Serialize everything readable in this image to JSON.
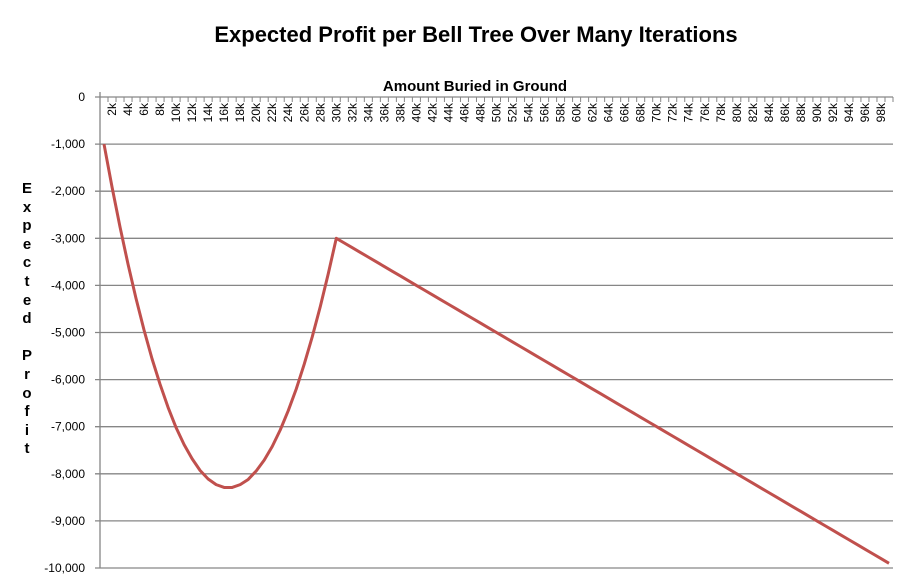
{
  "chart_data": {
    "type": "line",
    "title": "Expected Profit per Bell Tree Over Many Iterations",
    "xlabel": "Amount Buried in Ground",
    "ylabel": "Expected Profit",
    "x": [
      1000,
      2000,
      3000,
      4000,
      5000,
      6000,
      7000,
      8000,
      9000,
      10000,
      11000,
      12000,
      13000,
      14000,
      15000,
      16000,
      17000,
      18000,
      19000,
      20000,
      21000,
      22000,
      23000,
      24000,
      25000,
      26000,
      27000,
      28000,
      29000,
      30000,
      31000,
      32000,
      33000,
      34000,
      35000,
      36000,
      37000,
      38000,
      39000,
      40000,
      41000,
      42000,
      43000,
      44000,
      45000,
      46000,
      47000,
      48000,
      49000,
      50000,
      51000,
      52000,
      53000,
      54000,
      55000,
      56000,
      57000,
      58000,
      59000,
      60000,
      61000,
      62000,
      63000,
      64000,
      65000,
      66000,
      67000,
      68000,
      69000,
      70000,
      71000,
      72000,
      73000,
      74000,
      75000,
      76000,
      77000,
      78000,
      79000,
      80000,
      81000,
      82000,
      83000,
      84000,
      85000,
      86000,
      87000,
      88000,
      89000,
      90000,
      91000,
      92000,
      93000,
      94000,
      95000,
      96000,
      97000,
      98000,
      99000
    ],
    "series": [
      {
        "color": "#c0504d",
        "values": [
          -1000,
          -1910,
          -2760,
          -3550,
          -4280,
          -4950,
          -5560,
          -6100,
          -6590,
          -7020,
          -7380,
          -7680,
          -7930,
          -8110,
          -8230,
          -8290,
          -8290,
          -8230,
          -8120,
          -7940,
          -7710,
          -7420,
          -7070,
          -6660,
          -6200,
          -5670,
          -5090,
          -4450,
          -3750,
          -3000,
          -3100,
          -3200,
          -3300,
          -3400,
          -3500,
          -3600,
          -3700,
          -3800,
          -3900,
          -4000,
          -4100,
          -4200,
          -4300,
          -4400,
          -4500,
          -4600,
          -4700,
          -4800,
          -4900,
          -5000,
          -5100,
          -5200,
          -5300,
          -5400,
          -5500,
          -5600,
          -5700,
          -5800,
          -5900,
          -6000,
          -6100,
          -6200,
          -6300,
          -6400,
          -6500,
          -6600,
          -6700,
          -6800,
          -6900,
          -7000,
          -7100,
          -7200,
          -7300,
          -7400,
          -7500,
          -7600,
          -7700,
          -7800,
          -7900,
          -8000,
          -8100,
          -8200,
          -8300,
          -8400,
          -8500,
          -8600,
          -8700,
          -8800,
          -8900,
          -9000,
          -9100,
          -9200,
          -9300,
          -9400,
          -9500,
          -9600,
          -9700,
          -9800,
          -9900
        ]
      }
    ],
    "x_tick_labels": [
      "2k",
      "4k",
      "6k",
      "8k",
      "10k",
      "12k",
      "14k",
      "16k",
      "18k",
      "20k",
      "22k",
      "24k",
      "26k",
      "28k",
      "30k",
      "32k",
      "34k",
      "36k",
      "38k",
      "40k",
      "42k",
      "44k",
      "46k",
      "48k",
      "50k",
      "52k",
      "54k",
      "56k",
      "58k",
      "60k",
      "62k",
      "64k",
      "66k",
      "68k",
      "70k",
      "72k",
      "74k",
      "76k",
      "78k",
      "80k",
      "82k",
      "84k",
      "86k",
      "88k",
      "90k",
      "92k",
      "94k",
      "96k",
      "98k"
    ],
    "y_ticks": [
      0,
      -1000,
      -2000,
      -3000,
      -4000,
      -5000,
      -6000,
      -7000,
      -8000,
      -9000,
      -10000
    ],
    "y_tick_labels": [
      "0",
      "-1,000",
      "-2,000",
      "-3,000",
      "-4,000",
      "-5,000",
      "-6,000",
      "-7,000",
      "-8,000",
      "-9,000",
      "-10,000"
    ],
    "ylim": [
      -10000,
      0
    ],
    "x_axis_position": "top",
    "grid": true,
    "grid_color": "#868686",
    "legend": "none"
  }
}
